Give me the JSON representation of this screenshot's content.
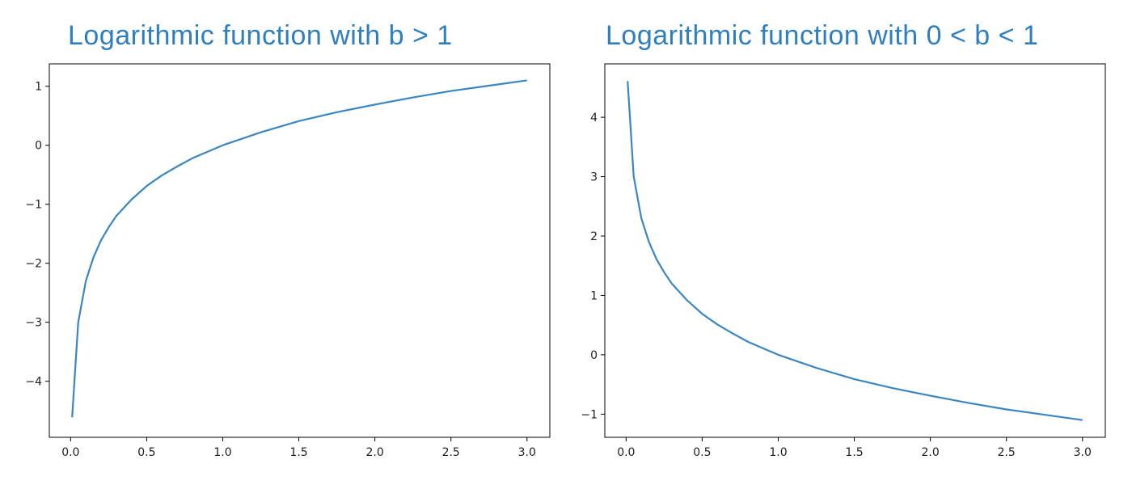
{
  "colors": {
    "title": "#2f7fbf",
    "line": "#3a86c2",
    "axis": "#000000"
  },
  "chart_data": [
    {
      "type": "line",
      "title": "Logarithmic function with b > 1",
      "xlabel": "",
      "ylabel": "",
      "xlim": [
        -0.14,
        3.15
      ],
      "ylim": [
        -4.95,
        1.38
      ],
      "x_ticks": [
        0.0,
        0.5,
        1.0,
        1.5,
        2.0,
        2.5,
        3.0
      ],
      "x_tick_labels": [
        "0.0",
        "0.5",
        "1.0",
        "1.5",
        "2.0",
        "2.5",
        "3.0"
      ],
      "y_ticks": [
        -4,
        -3,
        -2,
        -1,
        0,
        1
      ],
      "y_tick_labels": [
        "−4",
        "−3",
        "−2",
        "−1",
        "0",
        "1"
      ],
      "grid": false,
      "series": [
        {
          "x": [
            0.01,
            0.05,
            0.1,
            0.15,
            0.2,
            0.25,
            0.3,
            0.4,
            0.5,
            0.6,
            0.7,
            0.8,
            0.9,
            1.0,
            1.25,
            1.5,
            1.75,
            2.0,
            2.25,
            2.5,
            2.75,
            3.0
          ],
          "y": [
            -4.61,
            -3.0,
            -2.3,
            -1.9,
            -1.61,
            -1.39,
            -1.2,
            -0.92,
            -0.69,
            -0.51,
            -0.36,
            -0.22,
            -0.11,
            0.0,
            0.22,
            0.41,
            0.56,
            0.69,
            0.81,
            0.92,
            1.01,
            1.1
          ]
        }
      ]
    },
    {
      "type": "line",
      "title": "Logarithmic function with 0 < b < 1",
      "xlabel": "",
      "ylabel": "",
      "xlim": [
        -0.14,
        3.15
      ],
      "ylim": [
        -1.39,
        4.9
      ],
      "x_ticks": [
        0.0,
        0.5,
        1.0,
        1.5,
        2.0,
        2.5,
        3.0
      ],
      "x_tick_labels": [
        "0.0",
        "0.5",
        "1.0",
        "1.5",
        "2.0",
        "2.5",
        "3.0"
      ],
      "y_ticks": [
        -1,
        0,
        1,
        2,
        3,
        4
      ],
      "y_tick_labels": [
        "−1",
        "0",
        "1",
        "2",
        "3",
        "4"
      ],
      "grid": false,
      "series": [
        {
          "x": [
            0.01,
            0.05,
            0.1,
            0.15,
            0.2,
            0.25,
            0.3,
            0.4,
            0.5,
            0.6,
            0.7,
            0.8,
            0.9,
            1.0,
            1.25,
            1.5,
            1.75,
            2.0,
            2.25,
            2.5,
            2.75,
            3.0
          ],
          "y": [
            4.61,
            3.0,
            2.3,
            1.9,
            1.61,
            1.39,
            1.2,
            0.92,
            0.69,
            0.51,
            0.36,
            0.22,
            0.11,
            0.0,
            -0.22,
            -0.41,
            -0.56,
            -0.69,
            -0.81,
            -0.92,
            -1.01,
            -1.1
          ]
        }
      ]
    }
  ]
}
